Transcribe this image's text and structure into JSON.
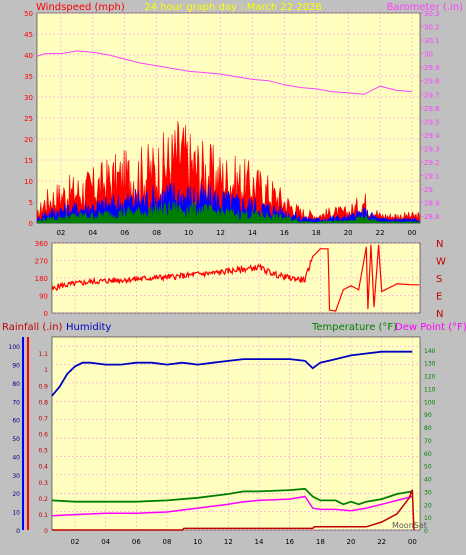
{
  "page_title": "24 hour graph day : March 22 2026",
  "colors": {
    "background": "#c0c0c0",
    "plot_bg": "#ffffc0",
    "grid": "#ff80ff",
    "wind_speed": "#ff0000",
    "wind_avg": "#0000ff",
    "wind_min": "#008000",
    "barometer": "#ff40ff",
    "direction": "#ff0000",
    "humidity": "#0000c0",
    "temperature": "#008000",
    "dew_point": "#ff00ff",
    "rainfall": "#c00000",
    "title": "#ffff00"
  },
  "chart_data": [
    {
      "type": "area",
      "id": "wind_barometer",
      "title": "24 hour graph day : March 22 2026",
      "left_label": "Windspeed (mph)",
      "right_label": "Barometer (.in)",
      "x_ticks": [
        "02",
        "04",
        "06",
        "08",
        "10",
        "12",
        "14",
        "16",
        "18",
        "20",
        "22",
        "00"
      ],
      "x_range": [
        0.5,
        24.5
      ],
      "y_left": {
        "min": 0,
        "max": 50,
        "ticks": [
          "0",
          "5",
          "10",
          "15",
          "20",
          "25",
          "30",
          "35",
          "40",
          "45",
          "50"
        ]
      },
      "y_right": {
        "min": 28.75,
        "max": 30.3,
        "ticks": [
          "28.8",
          "28.9",
          "29",
          "29.1",
          "29.2",
          "29.3",
          "29.4",
          "29.5",
          "29.6",
          "29.7",
          "29.8",
          "29.9",
          "30",
          "30.1",
          "30.2",
          "30.3"
        ]
      },
      "grid": true,
      "series": [
        {
          "key": "gust",
          "points": [
            [
              0.5,
              2
            ],
            [
              1,
              6
            ],
            [
              2,
              8
            ],
            [
              3,
              9
            ],
            [
              4,
              10
            ],
            [
              5,
              12
            ],
            [
              6,
              13
            ],
            [
              7,
              14
            ],
            [
              8,
              15
            ],
            [
              9,
              18
            ],
            [
              9.5,
              20
            ],
            [
              10,
              17
            ],
            [
              11,
              15
            ],
            [
              12,
              13
            ],
            [
              13,
              12
            ],
            [
              14,
              11
            ],
            [
              15,
              9
            ],
            [
              16,
              6
            ],
            [
              17,
              3
            ],
            [
              18,
              2
            ],
            [
              19,
              3
            ],
            [
              20,
              3
            ],
            [
              21,
              6
            ],
            [
              22,
              2
            ],
            [
              23,
              2
            ],
            [
              24,
              2
            ]
          ]
        },
        {
          "key": "average",
          "points": [
            [
              0.5,
              1
            ],
            [
              1,
              2.5
            ],
            [
              2,
              3.5
            ],
            [
              3,
              4
            ],
            [
              4,
              4.5
            ],
            [
              5,
              5
            ],
            [
              6,
              6
            ],
            [
              7,
              6.5
            ],
            [
              8,
              7
            ],
            [
              9,
              8
            ],
            [
              10,
              7.5
            ],
            [
              11,
              7
            ],
            [
              12,
              6.5
            ],
            [
              13,
              5.5
            ],
            [
              14,
              5
            ],
            [
              15,
              4
            ],
            [
              16,
              3
            ],
            [
              17,
              1.5
            ],
            [
              18,
              1
            ],
            [
              19,
              1.5
            ],
            [
              20,
              1.5
            ],
            [
              21,
              3
            ],
            [
              22,
              1
            ],
            [
              23,
              1
            ],
            [
              24,
              1
            ]
          ]
        },
        {
          "key": "minimum",
          "points": [
            [
              0.5,
              0.5
            ],
            [
              1,
              1
            ],
            [
              2,
              1.5
            ],
            [
              3,
              2
            ],
            [
              4,
              2
            ],
            [
              5,
              2.5
            ],
            [
              6,
              3
            ],
            [
              7,
              3
            ],
            [
              8,
              3.5
            ],
            [
              9,
              4
            ],
            [
              10,
              4
            ],
            [
              11,
              3.5
            ],
            [
              12,
              3
            ],
            [
              13,
              2.5
            ],
            [
              14,
              2.5
            ],
            [
              15,
              2
            ],
            [
              16,
              1.5
            ],
            [
              17,
              0.5
            ],
            [
              18,
              0.3
            ],
            [
              19,
              0.5
            ],
            [
              20,
              0.5
            ],
            [
              21,
              1.5
            ],
            [
              22,
              0.3
            ],
            [
              23,
              0.3
            ],
            [
              24,
              0.3
            ]
          ]
        },
        {
          "key": "barometer",
          "points": [
            [
              0.5,
              29.98
            ],
            [
              1,
              30.0
            ],
            [
              2,
              30.0
            ],
            [
              3,
              30.02
            ],
            [
              4,
              30.01
            ],
            [
              5,
              29.99
            ],
            [
              6,
              29.96
            ],
            [
              7,
              29.93
            ],
            [
              8,
              29.91
            ],
            [
              9,
              29.89
            ],
            [
              10,
              29.87
            ],
            [
              11,
              29.86
            ],
            [
              12,
              29.85
            ],
            [
              13,
              29.83
            ],
            [
              14,
              29.81
            ],
            [
              15,
              29.8
            ],
            [
              16,
              29.77
            ],
            [
              17,
              29.75
            ],
            [
              18,
              29.74
            ],
            [
              19,
              29.72
            ],
            [
              20,
              29.71
            ],
            [
              21,
              29.7
            ],
            [
              21.5,
              29.73
            ],
            [
              22,
              29.76
            ],
            [
              23,
              29.73
            ],
            [
              24,
              29.72
            ]
          ]
        }
      ]
    },
    {
      "type": "line",
      "id": "wind_direction",
      "y_left": {
        "min": 0,
        "max": 360,
        "ticks": [
          "0",
          "90",
          "180",
          "270",
          "360"
        ]
      },
      "y_right_labels": [
        "N",
        "W",
        "S",
        "E",
        "N"
      ],
      "x_range": [
        0.5,
        24.5
      ],
      "grid": true,
      "series": [
        {
          "key": "direction",
          "points": [
            [
              0.5,
              120
            ],
            [
              1,
              140
            ],
            [
              2,
              150
            ],
            [
              3,
              160
            ],
            [
              4,
              165
            ],
            [
              5,
              170
            ],
            [
              6,
              175
            ],
            [
              7,
              180
            ],
            [
              8,
              185
            ],
            [
              9,
              190
            ],
            [
              10,
              200
            ],
            [
              11,
              205
            ],
            [
              12,
              215
            ],
            [
              13,
              225
            ],
            [
              14,
              235
            ],
            [
              15,
              200
            ],
            [
              16,
              180
            ],
            [
              17,
              170
            ],
            [
              17.5,
              290
            ],
            [
              18,
              330
            ],
            [
              18.5,
              330
            ],
            [
              18.6,
              15
            ],
            [
              19,
              10
            ],
            [
              19.5,
              120
            ],
            [
              20,
              140
            ],
            [
              20.5,
              120
            ],
            [
              21,
              340
            ],
            [
              21.1,
              20
            ],
            [
              21.3,
              350
            ],
            [
              21.5,
              30
            ],
            [
              21.8,
              350
            ],
            [
              22,
              110
            ],
            [
              23,
              150
            ],
            [
              24,
              145
            ]
          ]
        }
      ]
    },
    {
      "type": "line",
      "id": "rain_humidity_temp",
      "left_labels": [
        {
          "text": "Rainfall (.in)"
        },
        {
          "text": "Humidity"
        }
      ],
      "right_labels": [
        {
          "text": "Temperature (°F)"
        },
        {
          "text": "Dew Point (°F)"
        }
      ],
      "x_ticks": [
        "02",
        "04",
        "06",
        "08",
        "10",
        "12",
        "14",
        "16",
        "18",
        "20",
        "22",
        "00"
      ],
      "x_range": [
        0.5,
        24.5
      ],
      "y_rain": {
        "min": 0,
        "max": 1.2,
        "ticks": [
          "0",
          "0.1",
          "0.2",
          "0.3",
          "0.4",
          "0.5",
          "0.6",
          "0.7",
          "0.8",
          "0.9",
          "1",
          "1.1"
        ]
      },
      "y_humidity": {
        "min": 0,
        "max": 105,
        "ticks": [
          "0",
          "10",
          "20",
          "30",
          "40",
          "50",
          "60",
          "70",
          "80",
          "90",
          "100"
        ]
      },
      "y_temp": {
        "min": 0,
        "max": 150,
        "ticks": [
          "0",
          "10",
          "20",
          "30",
          "40",
          "50",
          "60",
          "70",
          "80",
          "90",
          "100",
          "110",
          "120",
          "130",
          "140"
        ]
      },
      "annotation": "MoonSet",
      "grid": true,
      "series": [
        {
          "key": "humidity",
          "points": [
            [
              0.5,
              73
            ],
            [
              1,
              78
            ],
            [
              1.5,
              85
            ],
            [
              2,
              89
            ],
            [
              2.5,
              91
            ],
            [
              3,
              91
            ],
            [
              4,
              90
            ],
            [
              5,
              90
            ],
            [
              6,
              91
            ],
            [
              7,
              91
            ],
            [
              8,
              90
            ],
            [
              9,
              91
            ],
            [
              10,
              90
            ],
            [
              11,
              91
            ],
            [
              12,
              92
            ],
            [
              13,
              93
            ],
            [
              14,
              93
            ],
            [
              15,
              93
            ],
            [
              16,
              93
            ],
            [
              17,
              92
            ],
            [
              17.5,
              88
            ],
            [
              18,
              91
            ],
            [
              19,
              93
            ],
            [
              20,
              95
            ],
            [
              21,
              96
            ],
            [
              22,
              97
            ],
            [
              23,
              97
            ],
            [
              24,
              97
            ]
          ]
        },
        {
          "key": "temperature",
          "points": [
            [
              0.5,
              23
            ],
            [
              2,
              22
            ],
            [
              4,
              22
            ],
            [
              6,
              22
            ],
            [
              8,
              23
            ],
            [
              10,
              25
            ],
            [
              12,
              28
            ],
            [
              13,
              30
            ],
            [
              14,
              30
            ],
            [
              16,
              31
            ],
            [
              17,
              32
            ],
            [
              17.5,
              26
            ],
            [
              18,
              23
            ],
            [
              19,
              23
            ],
            [
              19.5,
              20
            ],
            [
              20,
              22
            ],
            [
              20.5,
              20
            ],
            [
              21,
              22
            ],
            [
              22,
              24
            ],
            [
              23,
              28
            ],
            [
              24,
              30
            ]
          ]
        },
        {
          "key": "dew_point",
          "points": [
            [
              0.5,
              11
            ],
            [
              2,
              12
            ],
            [
              4,
              13
            ],
            [
              6,
              13
            ],
            [
              8,
              14
            ],
            [
              10,
              17
            ],
            [
              12,
              20
            ],
            [
              13,
              22
            ],
            [
              14,
              23
            ],
            [
              16,
              24
            ],
            [
              17,
              26
            ],
            [
              17.5,
              17
            ],
            [
              18,
              16
            ],
            [
              19,
              16
            ],
            [
              20,
              15
            ],
            [
              21,
              17
            ],
            [
              22,
              20
            ],
            [
              23,
              23
            ],
            [
              24,
              26
            ]
          ]
        },
        {
          "key": "rainfall",
          "points": [
            [
              0.5,
              0
            ],
            [
              9,
              0
            ],
            [
              9.1,
              0.01
            ],
            [
              17.5,
              0.01
            ],
            [
              17.6,
              0.02
            ],
            [
              21,
              0.02
            ],
            [
              22,
              0.05
            ],
            [
              23,
              0.1
            ],
            [
              23.8,
              0.2
            ],
            [
              24,
              0.25
            ],
            [
              24.1,
              0
            ]
          ]
        }
      ]
    }
  ]
}
